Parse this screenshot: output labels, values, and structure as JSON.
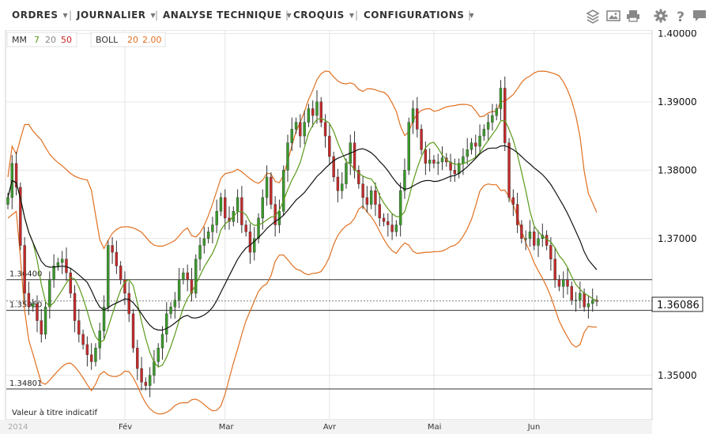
{
  "toolbar": {
    "menus": [
      {
        "label": "ORDRES"
      },
      {
        "label": "JOURNALIER"
      },
      {
        "label": "ANALYSE TECHNIQUE"
      },
      {
        "label": "CROQUIS"
      },
      {
        "label": "CONFIGURATIONS"
      }
    ],
    "icons": [
      "layers-icon",
      "image-icon",
      "print-icon",
      "gear-icon",
      "help-icon",
      "comment-icon"
    ]
  },
  "legend": {
    "mm_label": "MM",
    "mm_periods": [
      "7",
      "20",
      "50"
    ],
    "mm_colors": [
      "#5a9a1a",
      "#888888",
      "#cc2222"
    ],
    "boll_label": "BOLL",
    "boll_period": "20",
    "boll_dev": "2.00",
    "boll_color": "#e07020"
  },
  "note": "Valeur à titre indicatif",
  "colors": {
    "up": "#3a9a2a",
    "down": "#c42a2a",
    "ma7": "#5a9a1a",
    "ma20": "#111111",
    "boll": "#e07020",
    "grid": "#e6e6e6"
  },
  "chart_data": {
    "type": "candlestick",
    "ylim": [
      1.3435,
      1.4005
    ],
    "x_tick_labels": [
      "2014",
      "Fév",
      "Mar",
      "Avr",
      "Mai",
      "Jun"
    ],
    "y_tick_labels": [
      "1.40000",
      "1.39000",
      "1.38000",
      "1.37000",
      "1.35000"
    ],
    "y_ticks": [
      1.4,
      1.39,
      1.38,
      1.37,
      1.35
    ],
    "current_price": "1.36086",
    "current_value": 1.36086,
    "horizontal_lines": [
      {
        "label": "1.36400",
        "value": 1.364
      },
      {
        "label": "1.35950",
        "value": 1.3595
      },
      {
        "label": "1.34801",
        "value": 1.34801
      }
    ],
    "close": [
      1.376,
      1.381,
      1.3775,
      1.369,
      1.362,
      1.36,
      1.3605,
      1.358,
      1.356,
      1.36,
      1.364,
      1.366,
      1.3665,
      1.367,
      1.365,
      1.362,
      1.358,
      1.356,
      1.3545,
      1.353,
      1.352,
      1.354,
      1.3565,
      1.36,
      1.369,
      1.368,
      1.366,
      1.364,
      1.362,
      1.359,
      1.354,
      1.351,
      1.349,
      1.3485,
      1.35,
      1.352,
      1.354,
      1.356,
      1.359,
      1.36,
      1.361,
      1.364,
      1.365,
      1.364,
      1.362,
      1.367,
      1.369,
      1.37,
      1.371,
      1.372,
      1.374,
      1.376,
      1.373,
      1.3725,
      1.374,
      1.376,
      1.372,
      1.371,
      1.368,
      1.37,
      1.373,
      1.376,
      1.379,
      1.375,
      1.372,
      1.374,
      1.38,
      1.384,
      1.386,
      1.387,
      1.385,
      1.387,
      1.389,
      1.388,
      1.39,
      1.387,
      1.385,
      1.382,
      1.379,
      1.377,
      1.378,
      1.381,
      1.384,
      1.38,
      1.378,
      1.376,
      1.375,
      1.377,
      1.375,
      1.373,
      1.3725,
      1.372,
      1.371,
      1.372,
      1.377,
      1.38,
      1.387,
      1.389,
      1.386,
      1.383,
      1.381,
      1.3815,
      1.381,
      1.3812,
      1.3818,
      1.3812,
      1.38,
      1.3795,
      1.381,
      1.382,
      1.383,
      1.384,
      1.3835,
      1.385,
      1.386,
      1.387,
      1.388,
      1.389,
      1.392,
      1.384,
      1.376,
      1.375,
      1.372,
      1.37,
      1.37,
      1.371,
      1.369,
      1.37,
      1.3705,
      1.369,
      1.367,
      1.364,
      1.363,
      1.364,
      1.363,
      1.361,
      1.361,
      1.362,
      1.36,
      1.3605,
      1.361,
      1.3608
    ]
  }
}
